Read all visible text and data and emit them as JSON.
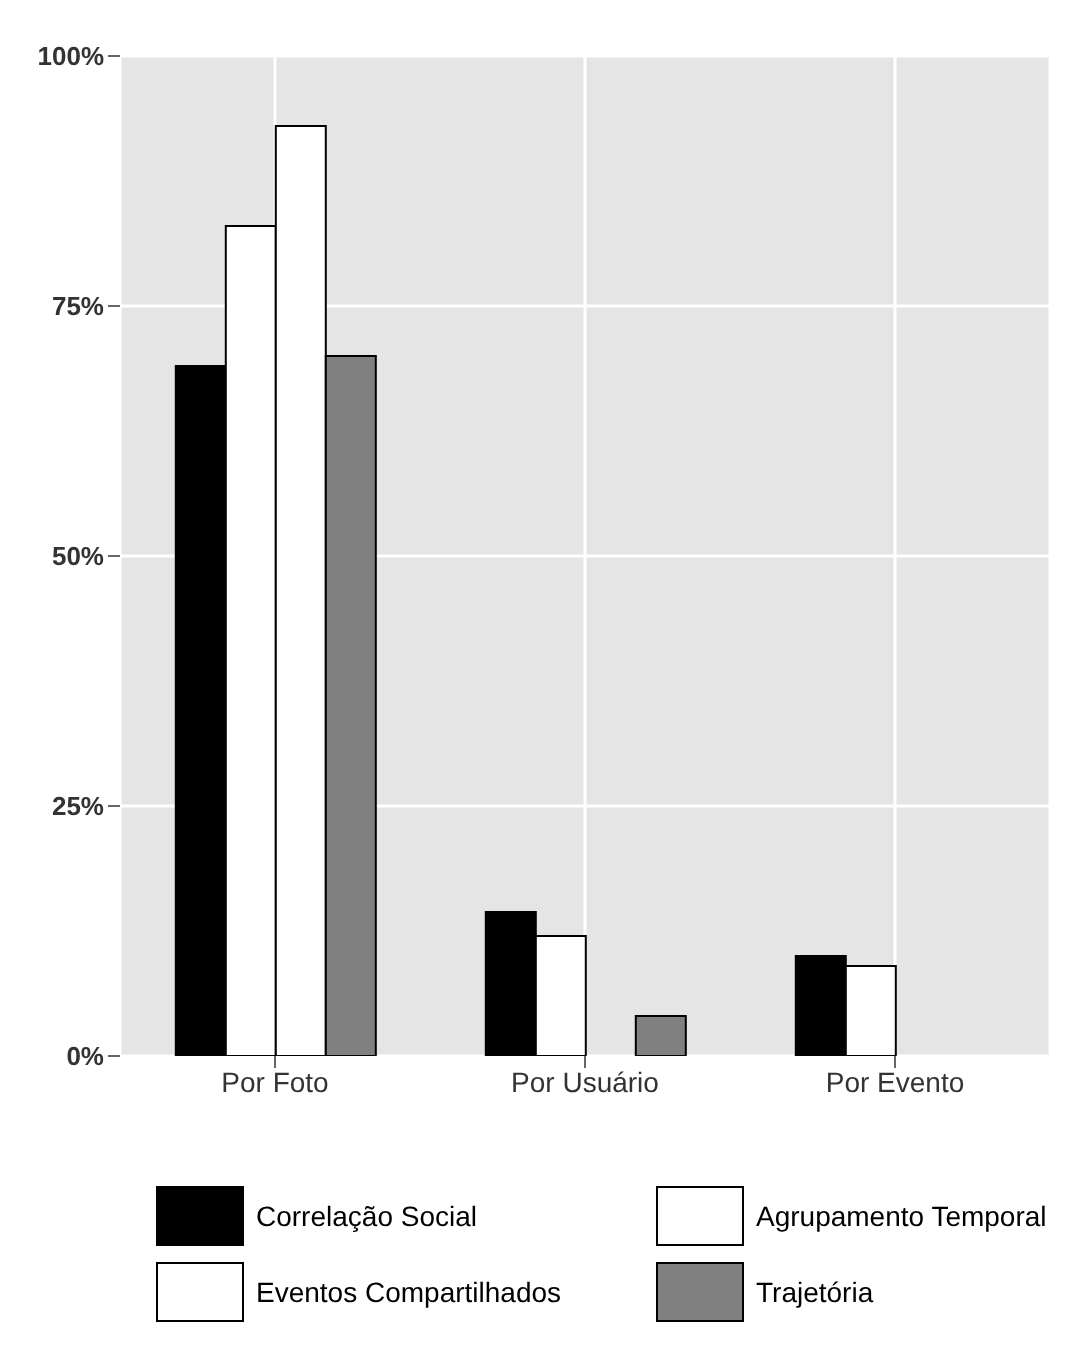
{
  "chart_data": {
    "type": "bar",
    "categories": [
      "Por Foto",
      "Por Usuário",
      "Por Evento"
    ],
    "series": [
      {
        "name": "Correlação Social",
        "color": "#000000",
        "values": [
          69,
          14.4,
          10
        ]
      },
      {
        "name": "Eventos Compartilhados",
        "color": "#ffffff",
        "values": [
          83,
          12,
          9
        ]
      },
      {
        "name": "Agrupamento Temporal",
        "color": "#ffffff",
        "values": [
          93,
          0,
          0
        ]
      },
      {
        "name": "Trajetória",
        "color": "#808080",
        "values": [
          70,
          4,
          0
        ]
      }
    ],
    "ylim": [
      0,
      100
    ],
    "yticks": [
      {
        "value": 0,
        "label": "0%"
      },
      {
        "value": 25,
        "label": "25%"
      },
      {
        "value": 50,
        "label": "50%"
      },
      {
        "value": 75,
        "label": "75%"
      },
      {
        "value": 100,
        "label": "100%"
      }
    ],
    "grid": true,
    "legend": "bottom"
  }
}
